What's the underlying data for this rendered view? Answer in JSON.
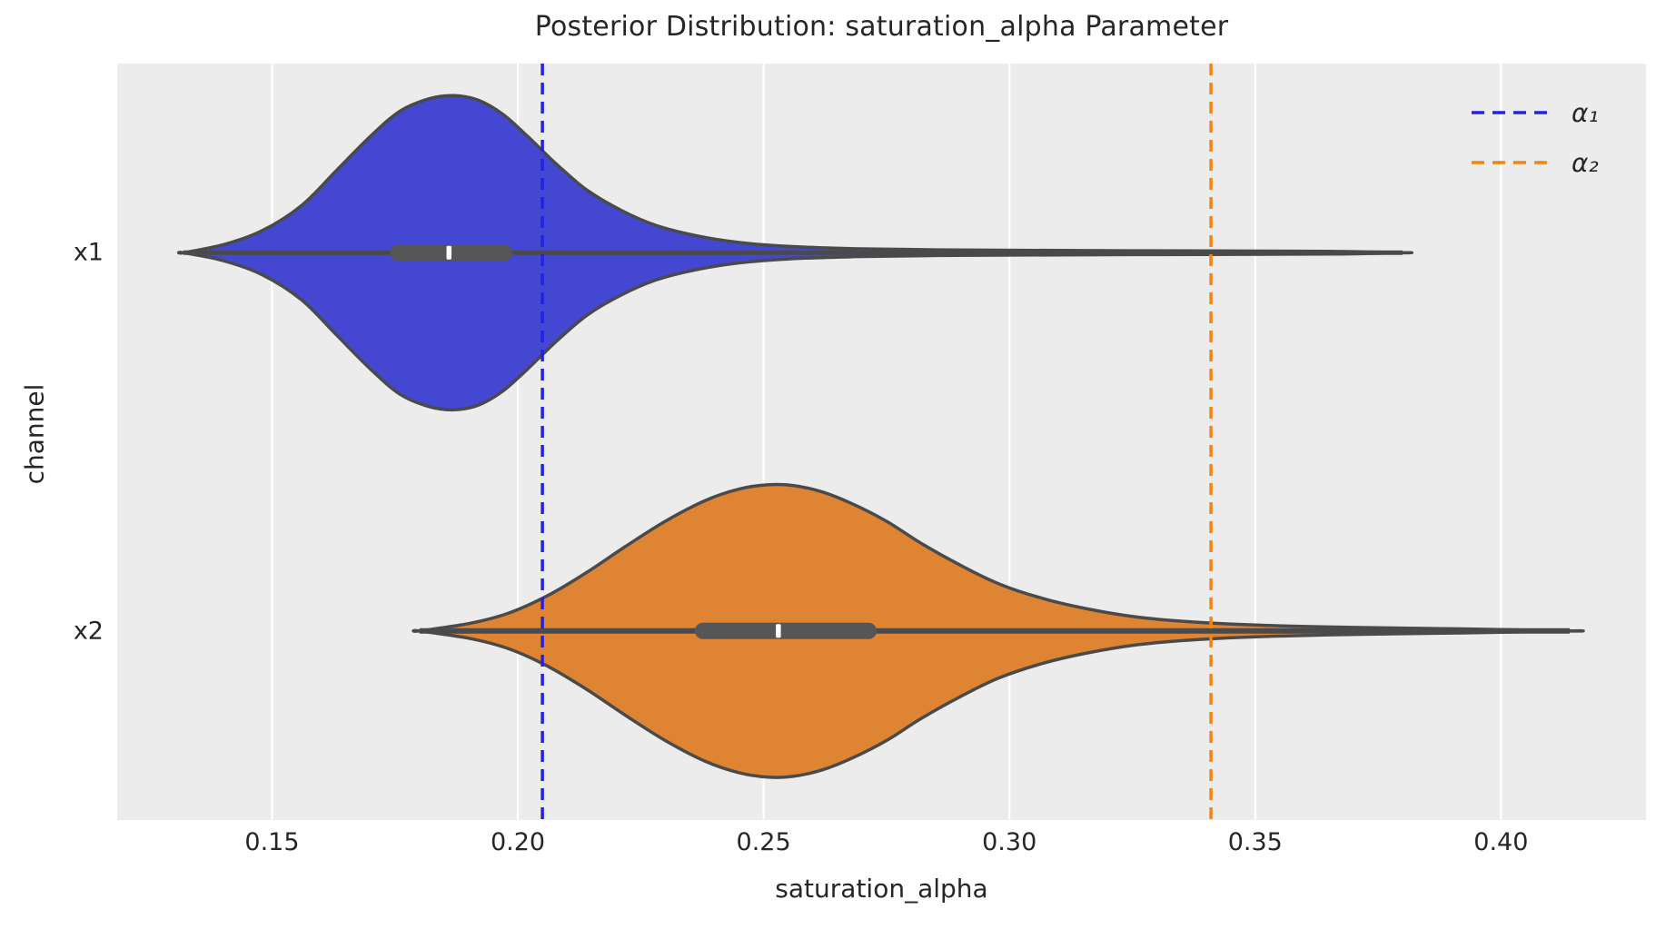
{
  "figure": {
    "title": "Posterior Distribution: saturation_alpha Parameter",
    "xlabel": "saturation_alpha",
    "ylabel": "channel"
  },
  "chart_data": {
    "type": "violin",
    "orientation": "horizontal",
    "title": "Posterior Distribution: saturation_alpha Parameter",
    "xlabel": "saturation_alpha",
    "ylabel": "channel",
    "categories": [
      "x1",
      "x2"
    ],
    "x_ticks": [
      0.15,
      0.2,
      0.25,
      0.3,
      0.35,
      0.4
    ],
    "xlim": [
      0.1185,
      0.4295
    ],
    "grid": "vertical-white-gridlines-on-gray",
    "legend": {
      "position": "upper-right",
      "entries": [
        {
          "label": "α₁",
          "color": "#2222e0",
          "style": "dashed"
        },
        {
          "label": "α₂",
          "color": "#f8820f",
          "style": "dashed"
        }
      ]
    },
    "reference_lines": [
      {
        "label": "α₁",
        "x": 0.205,
        "color": "#2222e0",
        "style": "dashed"
      },
      {
        "label": "α₂",
        "x": 0.341,
        "color": "#f8820f",
        "style": "dashed"
      }
    ],
    "series": [
      {
        "channel": "x1",
        "fill": "#4347d1",
        "min": 0.132,
        "max": 0.38,
        "q1": 0.174,
        "median": 0.186,
        "q3": 0.199,
        "mode": 0.187,
        "kde_x": [
          0.132,
          0.14,
          0.148,
          0.156,
          0.163,
          0.17,
          0.176,
          0.182,
          0.187,
          0.192,
          0.197,
          0.202,
          0.208,
          0.214,
          0.221,
          0.228,
          0.236,
          0.245,
          0.255,
          0.268,
          0.285,
          0.31,
          0.34,
          0.365,
          0.38
        ],
        "kde_density": [
          0.0,
          0.05,
          0.14,
          0.3,
          0.52,
          0.74,
          0.9,
          0.98,
          1.0,
          0.97,
          0.88,
          0.74,
          0.56,
          0.4,
          0.27,
          0.175,
          0.11,
          0.065,
          0.04,
          0.026,
          0.018,
          0.014,
          0.011,
          0.009,
          0.0
        ]
      },
      {
        "channel": "x2",
        "fill": "#de8433",
        "min": 0.18,
        "max": 0.414,
        "q1": 0.236,
        "median": 0.253,
        "q3": 0.273,
        "mode": 0.251,
        "kde_x": [
          0.18,
          0.19,
          0.198,
          0.206,
          0.214,
          0.222,
          0.23,
          0.238,
          0.245,
          0.251,
          0.256,
          0.262,
          0.268,
          0.275,
          0.282,
          0.29,
          0.298,
          0.307,
          0.316,
          0.326,
          0.338,
          0.352,
          0.37,
          0.392,
          0.414
        ],
        "kde_density": [
          0.0,
          0.05,
          0.12,
          0.24,
          0.4,
          0.58,
          0.75,
          0.89,
          0.97,
          1.0,
          0.995,
          0.95,
          0.87,
          0.75,
          0.6,
          0.45,
          0.32,
          0.22,
          0.15,
          0.095,
          0.06,
          0.038,
          0.024,
          0.014,
          0.0
        ]
      }
    ]
  },
  "style": {
    "plot_bg": "#ececec",
    "grid_color": "#ffffff",
    "violin_outline": "#4a4a4a",
    "box_color": "#565656",
    "median_tick_color": "#ffffff",
    "text_color": "#262626"
  }
}
